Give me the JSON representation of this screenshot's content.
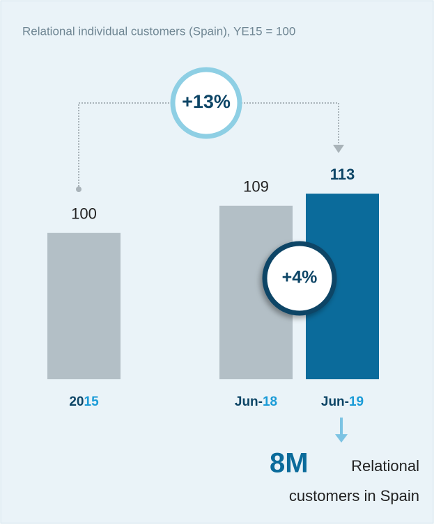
{
  "chart_data": {
    "type": "bar",
    "title": "Relational individual customers (Spain), YE15 = 100",
    "categories": [
      "2015",
      "Jun-18",
      "Jun-19"
    ],
    "values": [
      100,
      109,
      113
    ],
    "colors": [
      "#b3bfc6",
      "#b3bfc6",
      "#0b6b9b"
    ],
    "ylim": [
      51.5,
      150
    ],
    "annotations": [
      "+13%",
      "+4%"
    ],
    "callout": {
      "value": "8M",
      "lines": [
        "Relational",
        "customers in Spain"
      ]
    }
  }
}
